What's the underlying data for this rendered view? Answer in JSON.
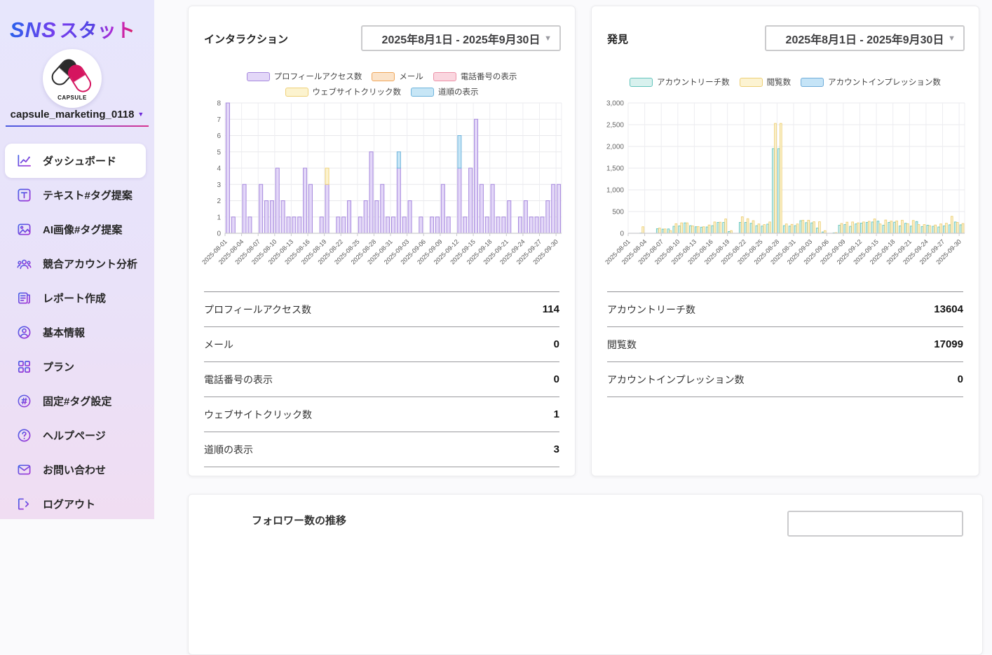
{
  "app": {
    "logo_sns": "SNS",
    "logo_stat": "スタット",
    "avatar_caption": "CAPSULE",
    "account_name": "capsule_marketing_0118",
    "dropdown_caret": "▼"
  },
  "sidebar": {
    "items": [
      {
        "label": "ダッシュボード",
        "icon": "chart-line-icon",
        "active": true
      },
      {
        "label": "テキスト#タグ提案",
        "icon": "text-tag-icon",
        "active": false
      },
      {
        "label": "AI画像#タグ提案",
        "icon": "image-icon",
        "active": false
      },
      {
        "label": "競合アカウント分析",
        "icon": "users-icon",
        "active": false
      },
      {
        "label": "レポート作成",
        "icon": "report-icon",
        "active": false
      },
      {
        "label": "基本情報",
        "icon": "profile-icon",
        "active": false
      },
      {
        "label": "プラン",
        "icon": "grid-icon",
        "active": false
      },
      {
        "label": "固定#タグ設定",
        "icon": "hash-icon",
        "active": false
      },
      {
        "label": "ヘルプページ",
        "icon": "help-icon",
        "active": false
      },
      {
        "label": "お問い合わせ",
        "icon": "mail-icon",
        "active": false
      },
      {
        "label": "ログアウト",
        "icon": "logout-icon",
        "active": false
      }
    ]
  },
  "cards": {
    "interactions": {
      "title": "インタラクション",
      "date_range": "2025年8月1日 - 2025年9月30日",
      "table": [
        {
          "label": "プロフィールアクセス数",
          "value": "114"
        },
        {
          "label": "メール",
          "value": "0"
        },
        {
          "label": "電話番号の表示",
          "value": "0"
        },
        {
          "label": "ウェブサイトクリック数",
          "value": "1"
        },
        {
          "label": "道順の表示",
          "value": "3"
        }
      ]
    },
    "discovery": {
      "title": "発見",
      "date_range": "2025年8月1日 - 2025年9月30日",
      "table": [
        {
          "label": "アカウントリーチ数",
          "value": "13604"
        },
        {
          "label": "閲覧数",
          "value": "17099"
        },
        {
          "label": "アカウントインプレッション数",
          "value": "0"
        }
      ]
    },
    "bottom": {
      "title": "フォロワー数の推移"
    }
  },
  "chart_data": [
    {
      "type": "bar",
      "mode": "stacked",
      "title": "インタラクション",
      "xlabel": "",
      "ylabel": "",
      "ylim": [
        0,
        8
      ],
      "yticks": [
        0,
        1,
        2,
        3,
        4,
        5,
        6,
        7,
        8
      ],
      "y_comma": false,
      "tick_every": 3,
      "grid": true,
      "legend_position": "top",
      "categories": [
        "2025-08-01",
        "2025-08-02",
        "2025-08-03",
        "2025-08-04",
        "2025-08-05",
        "2025-08-06",
        "2025-08-07",
        "2025-08-08",
        "2025-08-09",
        "2025-08-10",
        "2025-08-11",
        "2025-08-12",
        "2025-08-13",
        "2025-08-14",
        "2025-08-15",
        "2025-08-16",
        "2025-08-17",
        "2025-08-18",
        "2025-08-19",
        "2025-08-20",
        "2025-08-21",
        "2025-08-22",
        "2025-08-23",
        "2025-08-24",
        "2025-08-25",
        "2025-08-26",
        "2025-08-27",
        "2025-08-28",
        "2025-08-29",
        "2025-08-30",
        "2025-08-31",
        "2025-09-01",
        "2025-09-02",
        "2025-09-03",
        "2025-09-04",
        "2025-09-05",
        "2025-09-06",
        "2025-09-07",
        "2025-09-08",
        "2025-09-09",
        "2025-09-10",
        "2025-09-11",
        "2025-09-12",
        "2025-09-13",
        "2025-09-14",
        "2025-09-15",
        "2025-09-16",
        "2025-09-17",
        "2025-09-18",
        "2025-09-19",
        "2025-09-20",
        "2025-09-21",
        "2025-09-22",
        "2025-09-23",
        "2025-09-24",
        "2025-09-25",
        "2025-09-26",
        "2025-09-27",
        "2025-09-28",
        "2025-09-29",
        "2025-09-30"
      ],
      "series": [
        {
          "name": "プロフィールアクセス数",
          "fill": "#e3d7f8",
          "stroke": "#a688dd",
          "values": [
            8,
            1,
            0,
            3,
            1,
            0,
            3,
            2,
            2,
            4,
            2,
            1,
            1,
            1,
            4,
            3,
            0,
            1,
            3,
            0,
            1,
            1,
            2,
            0,
            1,
            2,
            5,
            2,
            3,
            1,
            1,
            4,
            1,
            2,
            0,
            1,
            0,
            1,
            1,
            3,
            1,
            0,
            4,
            1,
            4,
            7,
            3,
            1,
            3,
            1,
            1,
            2,
            0,
            1,
            2,
            1,
            1,
            1,
            2,
            3,
            3
          ]
        },
        {
          "name": "メール",
          "fill": "#fbe3c9",
          "stroke": "#efa75c",
          "values": [
            0,
            0,
            0,
            0,
            0,
            0,
            0,
            0,
            0,
            0,
            0,
            0,
            0,
            0,
            0,
            0,
            0,
            0,
            0,
            0,
            0,
            0,
            0,
            0,
            0,
            0,
            0,
            0,
            0,
            0,
            0,
            0,
            0,
            0,
            0,
            0,
            0,
            0,
            0,
            0,
            0,
            0,
            0,
            0,
            0,
            0,
            0,
            0,
            0,
            0,
            0,
            0,
            0,
            0,
            0,
            0,
            0,
            0,
            0,
            0,
            0
          ]
        },
        {
          "name": "電話番号の表示",
          "fill": "#fad6df",
          "stroke": "#ec92a8",
          "values": [
            0,
            0,
            0,
            0,
            0,
            0,
            0,
            0,
            0,
            0,
            0,
            0,
            0,
            0,
            0,
            0,
            0,
            0,
            0,
            0,
            0,
            0,
            0,
            0,
            0,
            0,
            0,
            0,
            0,
            0,
            0,
            0,
            0,
            0,
            0,
            0,
            0,
            0,
            0,
            0,
            0,
            0,
            0,
            0,
            0,
            0,
            0,
            0,
            0,
            0,
            0,
            0,
            0,
            0,
            0,
            0,
            0,
            0,
            0,
            0,
            0
          ]
        },
        {
          "name": "ウェブサイトクリック数",
          "fill": "#fcf3cf",
          "stroke": "#efd179",
          "values": [
            0,
            0,
            0,
            0,
            0,
            0,
            0,
            0,
            0,
            0,
            0,
            0,
            0,
            0,
            0,
            0,
            0,
            0,
            1,
            0,
            0,
            0,
            0,
            0,
            0,
            0,
            0,
            0,
            0,
            0,
            0,
            0,
            0,
            0,
            0,
            0,
            0,
            0,
            0,
            0,
            0,
            0,
            0,
            0,
            0,
            0,
            0,
            0,
            0,
            0,
            0,
            0,
            0,
            0,
            0,
            0,
            0,
            0,
            0,
            0,
            0
          ]
        },
        {
          "name": "道順の表示",
          "fill": "#c7e6f6",
          "stroke": "#6fb4dc",
          "values": [
            0,
            0,
            0,
            0,
            0,
            0,
            0,
            0,
            0,
            0,
            0,
            0,
            0,
            0,
            0,
            0,
            0,
            0,
            0,
            0,
            0,
            0,
            0,
            0,
            0,
            0,
            0,
            0,
            0,
            0,
            0,
            1,
            0,
            0,
            0,
            0,
            0,
            0,
            0,
            0,
            0,
            0,
            2,
            0,
            0,
            0,
            0,
            0,
            0,
            0,
            0,
            0,
            0,
            0,
            0,
            0,
            0,
            0,
            0,
            0,
            0
          ]
        }
      ]
    },
    {
      "type": "bar",
      "mode": "grouped",
      "title": "発見",
      "xlabel": "",
      "ylabel": "",
      "ylim": [
        0,
        3000
      ],
      "yticks": [
        0,
        500,
        1000,
        1500,
        2000,
        2500,
        3000
      ],
      "y_comma": true,
      "tick_every": 3,
      "grid": true,
      "legend_position": "top",
      "categories": [
        "2025-08-01",
        "2025-08-02",
        "2025-08-03",
        "2025-08-04",
        "2025-08-05",
        "2025-08-06",
        "2025-08-07",
        "2025-08-08",
        "2025-08-09",
        "2025-08-10",
        "2025-08-11",
        "2025-08-12",
        "2025-08-13",
        "2025-08-14",
        "2025-08-15",
        "2025-08-16",
        "2025-08-17",
        "2025-08-18",
        "2025-08-19",
        "2025-08-20",
        "2025-08-21",
        "2025-08-22",
        "2025-08-23",
        "2025-08-24",
        "2025-08-25",
        "2025-08-26",
        "2025-08-27",
        "2025-08-28",
        "2025-08-29",
        "2025-08-30",
        "2025-08-31",
        "2025-09-01",
        "2025-09-02",
        "2025-09-03",
        "2025-09-04",
        "2025-09-05",
        "2025-09-06",
        "2025-09-07",
        "2025-09-08",
        "2025-09-09",
        "2025-09-10",
        "2025-09-11",
        "2025-09-12",
        "2025-09-13",
        "2025-09-14",
        "2025-09-15",
        "2025-09-16",
        "2025-09-17",
        "2025-09-18",
        "2025-09-19",
        "2025-09-20",
        "2025-09-21",
        "2025-09-22",
        "2025-09-23",
        "2025-09-24",
        "2025-09-25",
        "2025-09-26",
        "2025-09-27",
        "2025-09-28",
        "2025-09-29",
        "2025-09-30"
      ],
      "series": [
        {
          "name": "アカウントリーチ数",
          "fill": "#d8f1ee",
          "stroke": "#63c4bc",
          "values": [
            0,
            0,
            5,
            0,
            0,
            105,
            95,
            100,
            160,
            170,
            240,
            175,
            150,
            140,
            145,
            175,
            250,
            249,
            40,
            0,
            250,
            250,
            230,
            175,
            165,
            210,
            1950,
            1950,
            175,
            165,
            175,
            290,
            245,
            240,
            120,
            30,
            0,
            10,
            185,
            200,
            160,
            215,
            235,
            250,
            260,
            280,
            185,
            250,
            255,
            170,
            230,
            165,
            270,
            155,
            185,
            160,
            145,
            170,
            195,
            260,
            195
          ]
        },
        {
          "name": "閲覧数",
          "fill": "#fcf3d2",
          "stroke": "#edcf75",
          "values": [
            0,
            0,
            150,
            0,
            0,
            120,
            100,
            60,
            220,
            240,
            240,
            170,
            155,
            150,
            190,
            260,
            255,
            330,
            60,
            0,
            380,
            335,
            290,
            215,
            200,
            260,
            2530,
            2530,
            215,
            205,
            215,
            300,
            300,
            265,
            265,
            60,
            0,
            15,
            225,
            255,
            260,
            240,
            260,
            275,
            330,
            215,
            305,
            280,
            285,
            300,
            220,
            295,
            200,
            200,
            175,
            190,
            215,
            230,
            390,
            250,
            224
          ]
        },
        {
          "name": "アカウントインプレッション数",
          "fill": "#c5e4f7",
          "stroke": "#6facd9",
          "values": [
            0,
            0,
            0,
            0,
            0,
            0,
            0,
            0,
            0,
            0,
            0,
            0,
            0,
            0,
            0,
            0,
            0,
            0,
            0,
            0,
            0,
            0,
            0,
            0,
            0,
            0,
            0,
            0,
            0,
            0,
            0,
            0,
            0,
            0,
            0,
            0,
            0,
            0,
            0,
            0,
            0,
            0,
            0,
            0,
            0,
            0,
            0,
            0,
            0,
            0,
            0,
            0,
            0,
            0,
            0,
            0,
            0,
            0,
            0,
            0,
            0
          ]
        }
      ]
    }
  ]
}
